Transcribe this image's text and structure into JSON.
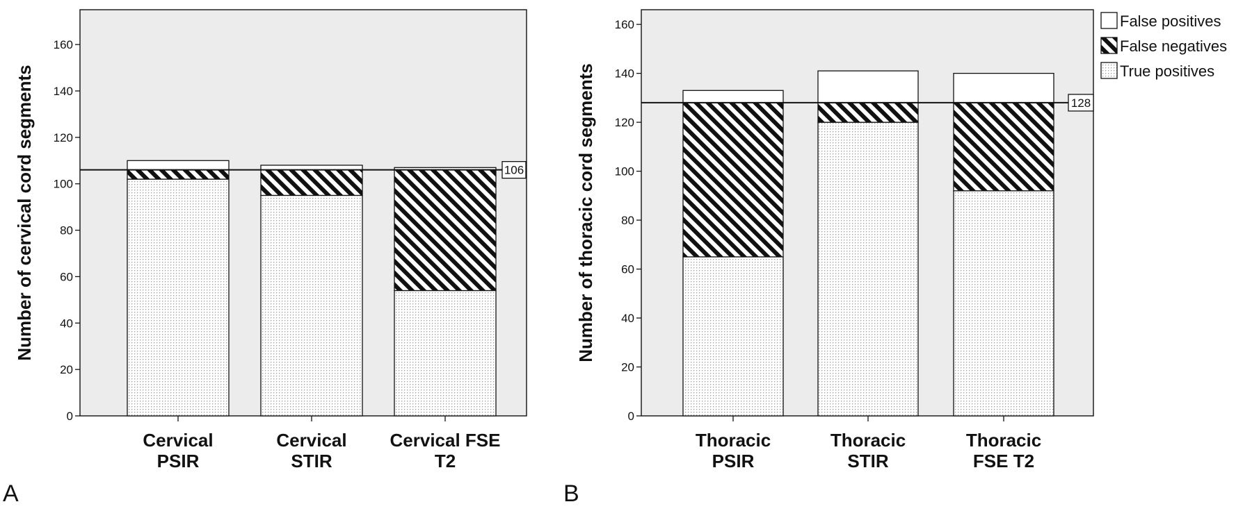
{
  "chart_data": [
    {
      "panel_label": "A",
      "type": "bar",
      "stacked": true,
      "categories": [
        [
          "Cervical",
          "PSIR"
        ],
        [
          "Cervical",
          "STIR"
        ],
        [
          "Cervical FSE",
          "T2"
        ]
      ],
      "series": [
        {
          "name": "True positives",
          "values": [
            102,
            95,
            54
          ]
        },
        {
          "name": "False negatives",
          "values": [
            4,
            11,
            52
          ]
        },
        {
          "name": "False positives",
          "values": [
            4,
            2,
            1
          ]
        }
      ],
      "reference_line": {
        "value": 106,
        "label": "106"
      },
      "ylabel": "Number of cervical cord segments",
      "ylim": [
        0,
        175
      ],
      "yticks": [
        0,
        20,
        40,
        60,
        80,
        100,
        120,
        140,
        160
      ],
      "legend": false
    },
    {
      "panel_label": "B",
      "type": "bar",
      "stacked": true,
      "categories": [
        [
          "Thoracic",
          "PSIR"
        ],
        [
          "Thoracic",
          "STIR"
        ],
        [
          "Thoracic",
          "FSE T2"
        ]
      ],
      "series": [
        {
          "name": "True positives",
          "values": [
            65,
            120,
            92
          ]
        },
        {
          "name": "False negatives",
          "values": [
            63,
            8,
            36
          ]
        },
        {
          "name": "False positives",
          "values": [
            5,
            13,
            12
          ]
        }
      ],
      "reference_line": {
        "value": 128,
        "label": "128"
      },
      "ylabel": "Number of thoracic cord segments",
      "ylim": [
        0,
        166
      ],
      "yticks": [
        0,
        20,
        40,
        60,
        80,
        100,
        120,
        140,
        160
      ],
      "legend": true,
      "legend_position": "top-right",
      "legend_items": [
        "False positives",
        "False negatives",
        "True positives"
      ]
    }
  ],
  "colors": {
    "plot_background": "#ececec",
    "false_positive_fill": "#ffffff",
    "axis": "#111111"
  }
}
